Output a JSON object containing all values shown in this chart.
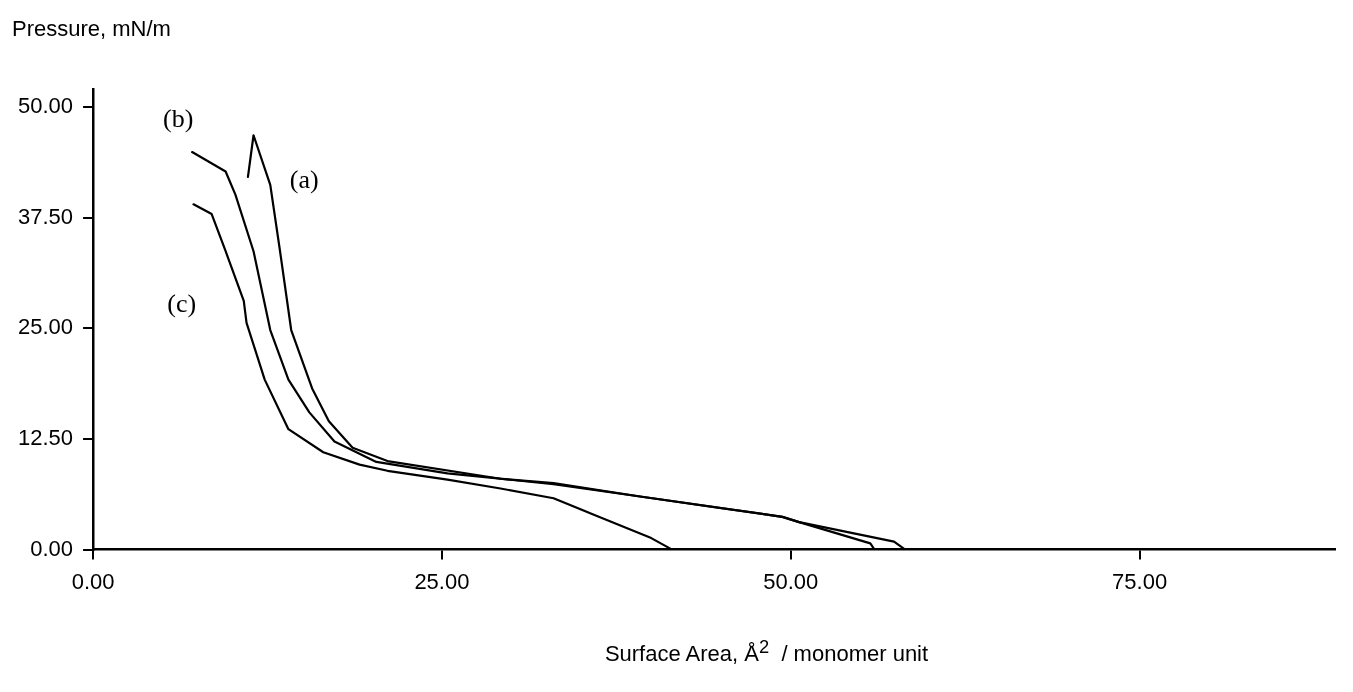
{
  "chart_data": {
    "type": "line",
    "xlabel": "Surface Area, Å$^{2}$  / monomer unit",
    "ylabel": "Pressure,  mN/m",
    "xlim": [
      0,
      89
    ],
    "ylim": [
      0,
      52
    ],
    "xticks": [
      {
        "value": 0,
        "label": "0.00"
      },
      {
        "value": 25,
        "label": "25.00"
      },
      {
        "value": 50,
        "label": "50.00"
      },
      {
        "value": 75,
        "label": "75.00"
      }
    ],
    "yticks": [
      {
        "value": 0,
        "label": "0.00"
      },
      {
        "value": 12.5,
        "label": "12.50"
      },
      {
        "value": 25,
        "label": "25.00"
      },
      {
        "value": 37.5,
        "label": "37.50"
      },
      {
        "value": 50,
        "label": "50.00"
      }
    ],
    "grid": false,
    "legend": false,
    "marker": "none",
    "line_style": "solid",
    "series": [
      {
        "name": "(a)",
        "color": "#000000",
        "x": [
          11.1,
          11.5,
          12.7,
          13.4,
          14.2,
          15.7,
          16.9,
          18.6,
          21.1,
          29.2,
          33.0,
          39.2,
          49.4,
          50.6,
          57.4,
          58.2,
          89
        ],
        "values": [
          42.1,
          46.8,
          41.2,
          33.7,
          24.8,
          18.2,
          14.5,
          11.5,
          10.0,
          8.0,
          7.5,
          6.0,
          3.7,
          3.1,
          0.9,
          0,
          0
        ]
      },
      {
        "name": "(b)",
        "color": "#000000",
        "x": [
          7.1,
          9.5,
          10.2,
          11.5,
          12.7,
          14.0,
          15.5,
          17.3,
          20.3,
          25.4,
          33.0,
          39.2,
          49.4,
          50.6,
          55.7,
          56.0
        ],
        "values": [
          44.9,
          42.7,
          40.1,
          33.7,
          24.8,
          19.2,
          15.5,
          12.2,
          9.9,
          8.6,
          7.4,
          6.0,
          3.7,
          3.1,
          0.7,
          0
        ]
      },
      {
        "name": "(c)",
        "color": "#000000",
        "x": [
          7.2,
          8.5,
          9.5,
          10.8,
          11.0,
          12.3,
          14.0,
          16.5,
          19.1,
          21.1,
          25.4,
          29.2,
          33.0,
          35.8,
          40.0,
          41.5
        ],
        "values": [
          39.0,
          37.9,
          33.7,
          28.1,
          25.6,
          19.2,
          13.6,
          11.0,
          9.6,
          8.9,
          7.9,
          6.9,
          5.8,
          4.0,
          1.3,
          0
        ]
      }
    ]
  }
}
